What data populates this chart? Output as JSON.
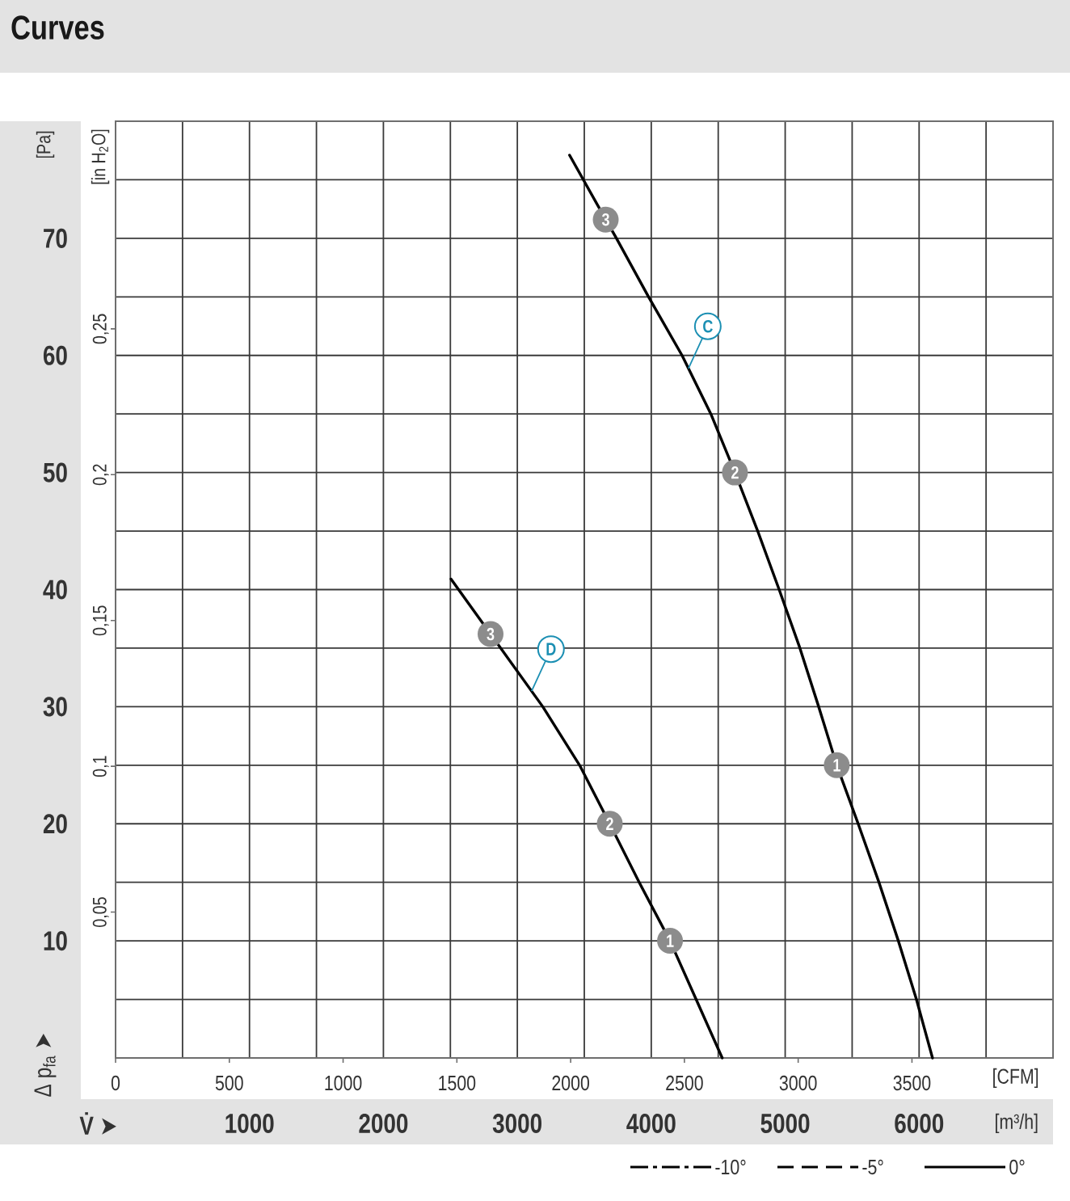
{
  "chart_data": {
    "type": "line",
    "title": "Curves",
    "xlabel": "[m³/h]",
    "x2label": "[CFM]",
    "ylabel": "[Pa]",
    "y2label": "[in H$_{2}$O]",
    "xlim": [
      0,
      7000
    ],
    "xticks": [
      {
        "value": 500,
        "label": null
      },
      1000,
      {
        "value": 1500,
        "label": null
      },
      2000,
      {
        "value": 2500,
        "label": null
      },
      3000,
      {
        "value": 3500,
        "label": null
      },
      4000,
      {
        "value": 4500,
        "label": null
      },
      5000,
      {
        "value": 5500,
        "label": null
      },
      6000,
      {
        "value": 6500,
        "label": null
      }
    ],
    "x2lim": [
      0,
      4120
    ],
    "x2ticks": [
      0,
      500,
      1000,
      1500,
      2000,
      2500,
      3000,
      3500
    ],
    "ylim": [
      0,
      80
    ],
    "yticks": [
      {
        "value": 5,
        "label": null
      },
      10,
      {
        "value": 15,
        "label": null
      },
      20,
      {
        "value": 25,
        "label": null
      },
      30,
      {
        "value": 35,
        "label": null
      },
      40,
      {
        "value": 45,
        "label": null
      },
      50,
      {
        "value": 55,
        "label": null
      },
      60,
      {
        "value": 65,
        "label": null
      },
      70,
      {
        "value": 75,
        "label": null
      }
    ],
    "y2lim": [
      0,
      0.3212
    ],
    "y2ticks": [
      {
        "value": 0.05,
        "label": "0,05"
      },
      {
        "value": 0.1,
        "label": "0,1"
      },
      {
        "value": 0.15,
        "label": "0,15"
      },
      {
        "value": 0.2,
        "label": "0,2"
      },
      {
        "value": 0.25,
        "label": "0,25"
      }
    ],
    "grid": true,
    "legend": "bottom right",
    "series": [
      {
        "name": "C",
        "color": "#000000",
        "line_style": "solid",
        "x": [
          3390,
          3660,
          3740,
          3980,
          4230,
          4445,
          4625,
          4795,
          4955,
          5110,
          5250,
          5385,
          5545,
          5700,
          5845,
          5980,
          6100
        ],
        "values": [
          77.1,
          71.6,
          70,
          65,
          60,
          55,
          50,
          45,
          40,
          35,
          30,
          25,
          20,
          15,
          10,
          5,
          0
        ]
      },
      {
        "name": "D",
        "color": "#000000",
        "line_style": "solid",
        "x": [
          2505,
          2800,
          3190,
          3465,
          3690,
          3910,
          4140,
          4335,
          4530
        ],
        "values": [
          40.9,
          36.2,
          30,
          25,
          20,
          15,
          10,
          5,
          0
        ]
      },
      {
        "name": "-10°",
        "color": "#000000",
        "line_style": "dashdot"
      },
      {
        "name": "-5°",
        "color": "#000000",
        "line_style": "dashed"
      },
      {
        "name": "0°",
        "color": "#000000",
        "line_style": "solid"
      }
    ],
    "annotations": [
      "Δ p$_{fa}$ ➤",
      "V̇ ➤",
      {
        "text": "3",
        "x": 3660,
        "y": 71.6
      },
      {
        "text": "2",
        "x": 4625,
        "y": 50
      },
      {
        "text": "1",
        "x": 5385,
        "y": 25
      },
      {
        "text": "3",
        "x": 2800,
        "y": 36.2
      },
      {
        "text": "2",
        "x": 3690,
        "y": 20
      },
      {
        "text": "1",
        "x": 4140,
        "y": 10
      }
    ]
  }
}
